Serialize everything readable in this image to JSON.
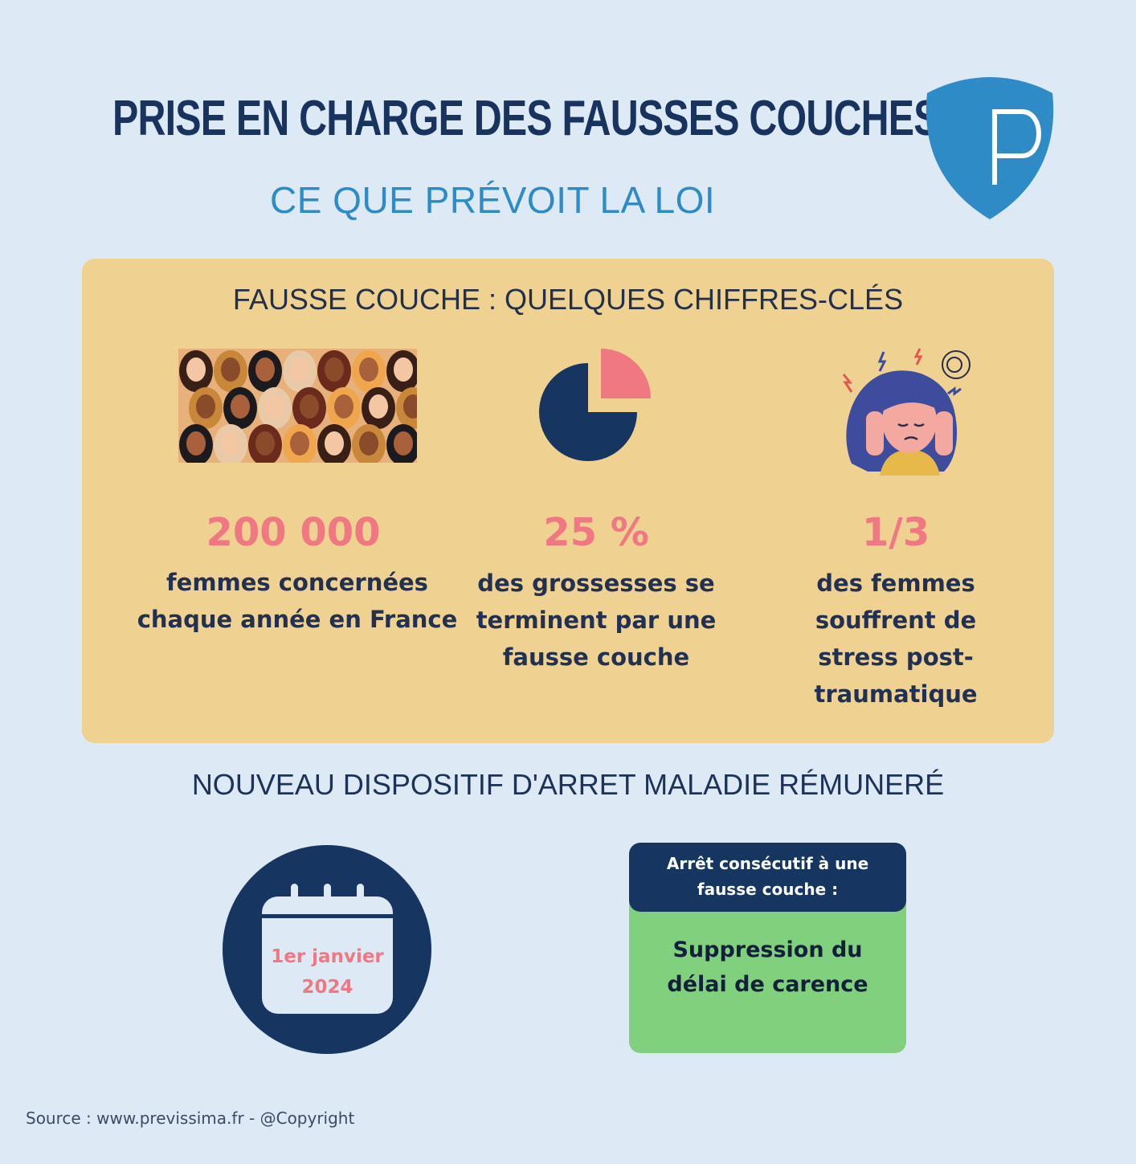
{
  "header": {
    "title": "PRISE EN CHARGE DES FAUSSES COUCHES",
    "subtitle": "CE QUE PRÉVOIT LA  LOI",
    "logo_letter": "P",
    "logo_icon": "shield-icon",
    "logo_color": "#2f8bc6"
  },
  "stats": {
    "heading": "FAUSSE COUCHE : QUELQUES CHIFFRES-CLÉS",
    "items": [
      {
        "icon": "women-crowd-illustration",
        "value": "200 000",
        "label_lines": [
          "femmes concernées",
          "chaque année en France"
        ]
      },
      {
        "icon": "pie-chart-icon",
        "value": "25 %",
        "label_lines": [
          "des grossesses se",
          "terminent par une",
          "fausse couche"
        ],
        "pie_fraction": 0.25
      },
      {
        "icon": "stressed-woman-illustration",
        "value": "1/3",
        "label_lines": [
          "des femmes",
          "souffrent de",
          "stress post-",
          "traumatique"
        ]
      }
    ],
    "panel_color": "#efd292",
    "accent_color": "#f07883"
  },
  "section2": {
    "heading": "NOUVEAU DISPOSITIF D'ARRET MALADIE RÉMUNERÉ",
    "calendar": {
      "icon": "calendar-icon",
      "line1": "1er janvier",
      "line2": "2024"
    },
    "note": {
      "head_lines": [
        "Arrêt consécutif à une",
        "fausse couche :"
      ],
      "body_lines": [
        "Suppression du",
        "délai de carence"
      ],
      "head_color": "#163561",
      "body_color": "#80d07e"
    }
  },
  "footer": {
    "source": "Source : www.previssima.fr - @Copyright"
  }
}
